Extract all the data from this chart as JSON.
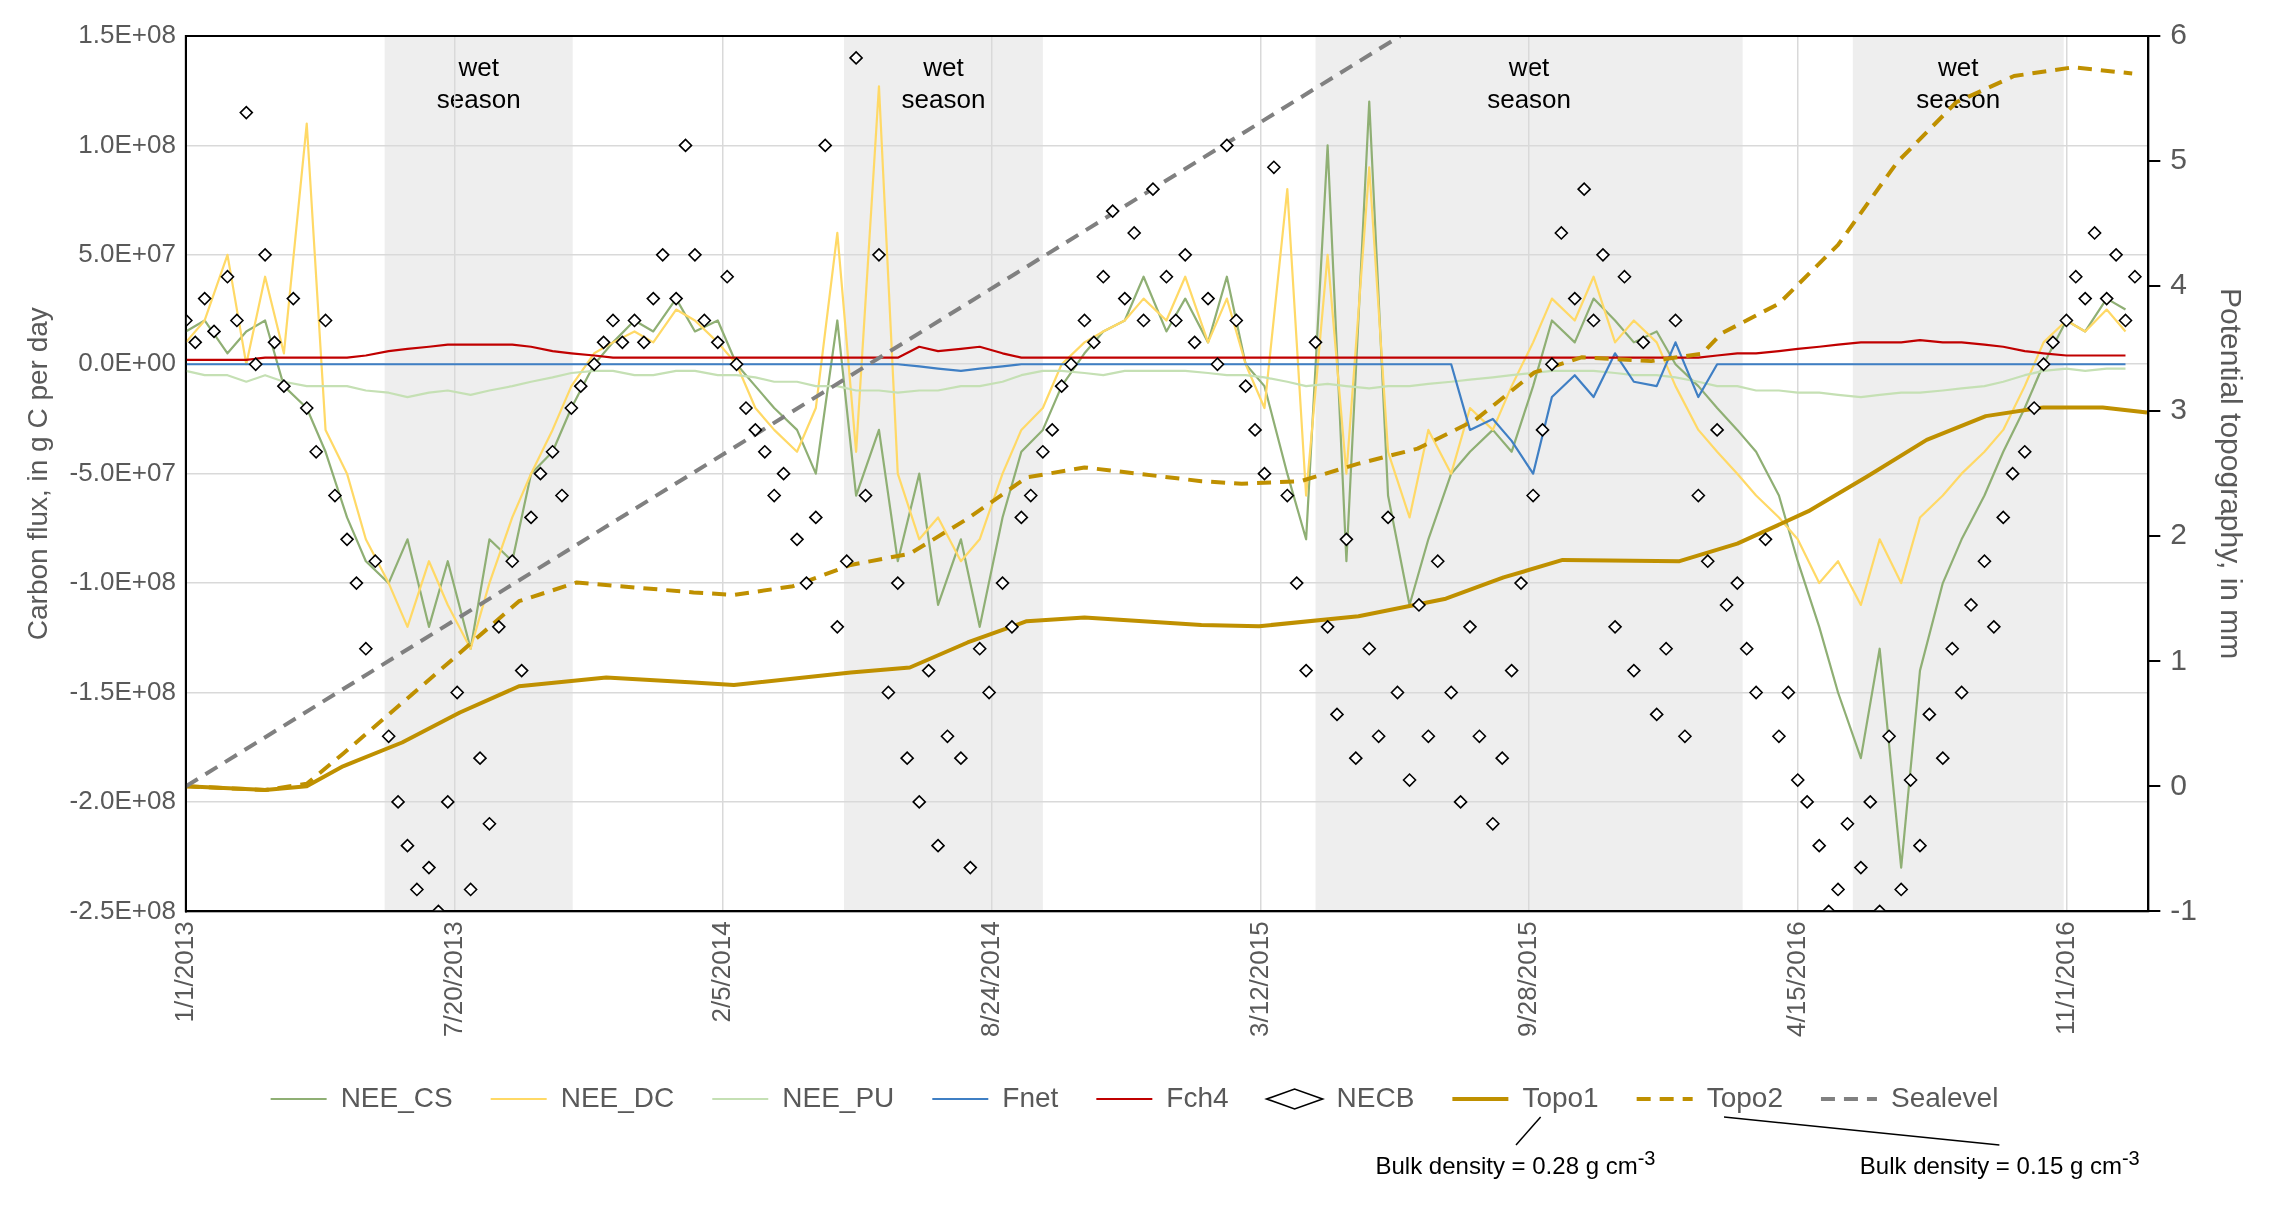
{
  "chart_data": {
    "type": "line",
    "ylabel": "Carbon flux, in g C per day",
    "y2label": "Potential topography, in mm",
    "xlim": [
      "2013-01-01",
      "2017-01-01"
    ],
    "xticks": [
      {
        "value": "2013-01-01",
        "label": "1/1/2013"
      },
      {
        "value": "2013-07-20",
        "label": "7/20/2013"
      },
      {
        "value": "2014-02-05",
        "label": "2/5/2014"
      },
      {
        "value": "2014-08-24",
        "label": "8/24/2014"
      },
      {
        "value": "2015-03-12",
        "label": "3/12/2015"
      },
      {
        "value": "2015-09-28",
        "label": "9/28/2015"
      },
      {
        "value": "2016-04-15",
        "label": "4/15/2016"
      },
      {
        "value": "2016-11-01",
        "label": "11/1/2016"
      }
    ],
    "ylim": [
      -250000000,
      150000000
    ],
    "yticks": [
      {
        "value": -250000000,
        "label": "-2.5E+08"
      },
      {
        "value": -200000000,
        "label": "-2.0E+08"
      },
      {
        "value": -150000000,
        "label": "-1.5E+08"
      },
      {
        "value": -100000000,
        "label": "-1.0E+08"
      },
      {
        "value": -50000000,
        "label": "-5.0E+07"
      },
      {
        "value": 0,
        "label": "0.0E+00"
      },
      {
        "value": 50000000,
        "label": "5.0E+07"
      },
      {
        "value": 100000000,
        "label": "1.0E+08"
      },
      {
        "value": 150000000,
        "label": "1.5E+08"
      }
    ],
    "y2lim": [
      -1,
      6
    ],
    "y2ticks": [
      -1,
      0,
      1,
      2,
      3,
      4,
      5,
      6
    ],
    "grid": true,
    "legend": "bottom",
    "bands": [
      {
        "axis": "x",
        "from": "2013-05-29",
        "to": "2013-10-16",
        "label": "wet season",
        "color": "#eeeeee"
      },
      {
        "axis": "x",
        "from": "2014-05-06",
        "to": "2014-10-01",
        "label": "wet season",
        "color": "#eeeeee"
      },
      {
        "axis": "x",
        "from": "2015-04-22",
        "to": "2016-03-05",
        "label": "wet season",
        "color": "#eeeeee"
      },
      {
        "axis": "x",
        "from": "2016-05-26",
        "to": "2016-10-30",
        "label": "wet season",
        "color": "#eeeeee"
      }
    ],
    "annotations": [
      "Bulk density = 0.28 g cm$^{-3}$",
      "Bulk density = 0.15 g cm$^{-3}$"
    ],
    "x": [
      "2013-01-01",
      "2013-01-15",
      "2013-02-01",
      "2013-02-15",
      "2013-03-01",
      "2013-03-15",
      "2013-04-01",
      "2013-04-15",
      "2013-05-01",
      "2013-05-15",
      "2013-06-01",
      "2013-06-15",
      "2013-07-01",
      "2013-07-15",
      "2013-08-01",
      "2013-08-15",
      "2013-09-01",
      "2013-09-15",
      "2013-10-01",
      "2013-10-15",
      "2013-11-01",
      "2013-11-15",
      "2013-12-01",
      "2013-12-15",
      "2014-01-01",
      "2014-01-15",
      "2014-02-01",
      "2014-02-15",
      "2014-03-01",
      "2014-03-15",
      "2014-04-01",
      "2014-04-15",
      "2014-05-01",
      "2014-05-15",
      "2014-06-01",
      "2014-06-15",
      "2014-07-01",
      "2014-07-15",
      "2014-08-01",
      "2014-08-15",
      "2014-09-01",
      "2014-09-15",
      "2014-10-01",
      "2014-10-15",
      "2014-11-01",
      "2014-11-15",
      "2014-12-01",
      "2014-12-15",
      "2015-01-01",
      "2015-01-15",
      "2015-02-01",
      "2015-02-15",
      "2015-03-01",
      "2015-03-15",
      "2015-04-01",
      "2015-04-15",
      "2015-05-01",
      "2015-05-15",
      "2015-06-01",
      "2015-06-15",
      "2015-07-01",
      "2015-07-15",
      "2015-08-01",
      "2015-08-15",
      "2015-09-01",
      "2015-09-15",
      "2015-10-01",
      "2015-10-15",
      "2015-11-01",
      "2015-11-15",
      "2015-12-01",
      "2015-12-15",
      "2016-01-01",
      "2016-01-15",
      "2016-02-01",
      "2016-02-15",
      "2016-03-01",
      "2016-03-15",
      "2016-04-01",
      "2016-04-15",
      "2016-05-01",
      "2016-05-15",
      "2016-06-01",
      "2016-06-15",
      "2016-07-01",
      "2016-07-15",
      "2016-08-01",
      "2016-08-15",
      "2016-09-01",
      "2016-09-15",
      "2016-10-01",
      "2016-10-15",
      "2016-11-01",
      "2016-11-15",
      "2016-12-01",
      "2016-12-15"
    ],
    "series": [
      {
        "name": "NEE_CS",
        "color": "#8faf74",
        "values": [
          15000000.0,
          20000000.0,
          5000000.0,
          15000000.0,
          20000000.0,
          -10000000.0,
          -20000000.0,
          -40000000.0,
          -70000000.0,
          -90000000.0,
          -100000000.0,
          -80000000.0,
          -120000000.0,
          -90000000.0,
          -130000000.0,
          -80000000.0,
          -90000000.0,
          -50000000.0,
          -40000000.0,
          -20000000.0,
          0,
          10000000.0,
          20000000.0,
          15000000.0,
          30000000.0,
          15000000.0,
          20000000.0,
          0,
          -10000000.0,
          -20000000.0,
          -30000000.0,
          -50000000.0,
          20000000.0,
          -60000000.0,
          -30000000.0,
          -90000000.0,
          -50000000.0,
          -110000000.0,
          -80000000.0,
          -120000000.0,
          -70000000.0,
          -40000000.0,
          -30000000.0,
          -10000000.0,
          5000000.0,
          15000000.0,
          20000000.0,
          40000000.0,
          15000000.0,
          30000000.0,
          10000000.0,
          40000000.0,
          0,
          -10000000.0,
          -50000000.0,
          -80000000.0,
          100000000.0,
          -90000000.0,
          120000000.0,
          -60000000.0,
          -110000000.0,
          -80000000.0,
          -50000000.0,
          -40000000.0,
          -30000000.0,
          -40000000.0,
          -10000000.0,
          20000000.0,
          10000000.0,
          30000000.0,
          20000000.0,
          10000000.0,
          15000000.0,
          0,
          -10000000.0,
          -20000000.0,
          -30000000.0,
          -40000000.0,
          -60000000.0,
          -90000000.0,
          -120000000.0,
          -150000000.0,
          -180000000.0,
          -130000000.0,
          -230000000.0,
          -140000000.0,
          -100000000.0,
          -80000000.0,
          -60000000.0,
          -40000000.0,
          -20000000.0,
          0,
          20000000.0,
          15000000.0,
          30000000.0,
          25000000.0
        ]
      },
      {
        "name": "NEE_DC",
        "color": "#ffd966",
        "values": [
          10000000.0,
          20000000.0,
          50000000.0,
          0,
          40000000.0,
          5000000.0,
          110000000.0,
          -30000000.0,
          -50000000.0,
          -80000000.0,
          -100000000.0,
          -120000000.0,
          -90000000.0,
          -110000000.0,
          -130000000.0,
          -100000000.0,
          -70000000.0,
          -50000000.0,
          -30000000.0,
          -10000000.0,
          5000000.0,
          10000000.0,
          15000000.0,
          10000000.0,
          25000000.0,
          20000000.0,
          10000000.0,
          0,
          -20000000.0,
          -30000000.0,
          -40000000.0,
          -20000000.0,
          60000000.0,
          -40000000.0,
          127000000.0,
          -50000000.0,
          -80000000.0,
          -70000000.0,
          -90000000.0,
          -80000000.0,
          -50000000.0,
          -30000000.0,
          -20000000.0,
          0,
          10000000.0,
          15000000.0,
          20000000.0,
          30000000.0,
          20000000.0,
          40000000.0,
          10000000.0,
          30000000.0,
          0,
          -20000000.0,
          80000000.0,
          -60000000.0,
          50000000.0,
          -50000000.0,
          90000000.0,
          -40000000.0,
          -70000000.0,
          -30000000.0,
          -50000000.0,
          -20000000.0,
          -30000000.0,
          -10000000.0,
          10000000.0,
          30000000.0,
          20000000.0,
          40000000.0,
          10000000.0,
          20000000.0,
          10000000.0,
          -10000000.0,
          -30000000.0,
          -40000000.0,
          -50000000.0,
          -60000000.0,
          -70000000.0,
          -80000000.0,
          -100000000.0,
          -90000000.0,
          -110000000.0,
          -80000000.0,
          -100000000.0,
          -70000000.0,
          -60000000.0,
          -50000000.0,
          -40000000.0,
          -30000000.0,
          -10000000.0,
          10000000.0,
          20000000.0,
          15000000.0,
          25000000.0,
          15000000.0
        ]
      },
      {
        "name": "NEE_PU",
        "color": "#c5e0b4",
        "values": [
          -3000000.0,
          -5000000.0,
          -5000000.0,
          -8000000.0,
          -5000000.0,
          -8000000.0,
          -10000000.0,
          -10000000.0,
          -10000000.0,
          -12000000.0,
          -13000000.0,
          -15000000.0,
          -13000000.0,
          -12000000.0,
          -14000000.0,
          -12000000.0,
          -10000000.0,
          -8000000.0,
          -6000000.0,
          -4000000.0,
          -3000000.0,
          -3000000.0,
          -5000000.0,
          -5000000.0,
          -3000000.0,
          -3000000.0,
          -5000000.0,
          -5000000.0,
          -6000000.0,
          -8000000.0,
          -8000000.0,
          -10000000.0,
          -10000000.0,
          -12000000.0,
          -12000000.0,
          -13000000.0,
          -12000000.0,
          -12000000.0,
          -10000000.0,
          -10000000.0,
          -8000000.0,
          -5000000.0,
          -3000000.0,
          -3000000.0,
          -4000000.0,
          -5000000.0,
          -3000000.0,
          -3000000.0,
          -3000000.0,
          -3000000.0,
          -4000000.0,
          -5000000.0,
          -5000000.0,
          -6000000.0,
          -8000000.0,
          -10000000.0,
          -9000000.0,
          -10000000.0,
          -11000000.0,
          -10000000.0,
          -10000000.0,
          -9000000.0,
          -8000000.0,
          -7000000.0,
          -6000000.0,
          -5000000.0,
          -4000000.0,
          -3000000.0,
          -3000000.0,
          -3000000.0,
          -4000000.0,
          -5000000.0,
          -5000000.0,
          -6000000.0,
          -8000000.0,
          -10000000.0,
          -10000000.0,
          -12000000.0,
          -12000000.0,
          -13000000.0,
          -13000000.0,
          -14000000.0,
          -15000000.0,
          -14000000.0,
          -13000000.0,
          -13000000.0,
          -12000000.0,
          -11000000.0,
          -10000000.0,
          -8000000.0,
          -5000000.0,
          -3000000.0,
          -2000000.0,
          -3000000.0,
          -2000000.0,
          -2000000.0
        ]
      },
      {
        "name": "Fnet",
        "color": "#3f7fc4",
        "values": [
          0,
          0,
          0,
          0,
          0,
          0,
          0,
          0,
          0,
          0,
          0,
          0,
          0,
          0,
          0,
          0,
          0,
          0,
          0,
          0,
          0,
          0,
          0,
          0,
          0,
          0,
          0,
          0,
          0,
          0,
          0,
          0,
          0,
          0,
          0,
          0,
          -1000000.0,
          -2000000.0,
          -3000000.0,
          -2000000.0,
          -1000000.0,
          0,
          0,
          0,
          0,
          0,
          0,
          0,
          0,
          0,
          0,
          0,
          0,
          0,
          0,
          0,
          0,
          0,
          0,
          0,
          0,
          0,
          0,
          -30000000.0,
          -25000000.0,
          -35000000.0,
          -50000000.0,
          -15000000.0,
          -5000000.0,
          -15000000.0,
          5000000.0,
          -8000000.0,
          -10000000.0,
          10000000.0,
          -15000000.0,
          0,
          0,
          0,
          0,
          0,
          0,
          0,
          0,
          0,
          0,
          0,
          0,
          0,
          0,
          0,
          0,
          0,
          0,
          0,
          0,
          0
        ]
      },
      {
        "name": "Fch4",
        "color": "#c00000",
        "values": [
          2000000.0,
          2000000.0,
          2000000.0,
          2000000.0,
          3000000.0,
          3000000.0,
          3000000.0,
          3000000.0,
          3000000.0,
          4000000.0,
          6000000.0,
          7000000.0,
          8000000.0,
          9000000.0,
          9000000.0,
          9000000.0,
          9000000.0,
          8000000.0,
          6000000.0,
          5000000.0,
          4000000.0,
          3000000.0,
          3000000.0,
          3000000.0,
          3000000.0,
          3000000.0,
          3000000.0,
          3000000.0,
          3000000.0,
          3000000.0,
          3000000.0,
          3000000.0,
          3000000.0,
          3000000.0,
          3000000.0,
          3000000.0,
          8000000.0,
          6000000.0,
          7000000.0,
          8000000.0,
          5000000.0,
          3000000.0,
          3000000.0,
          3000000.0,
          3000000.0,
          3000000.0,
          3000000.0,
          3000000.0,
          3000000.0,
          3000000.0,
          3000000.0,
          3000000.0,
          3000000.0,
          3000000.0,
          3000000.0,
          3000000.0,
          3000000.0,
          3000000.0,
          3000000.0,
          3000000.0,
          3000000.0,
          3000000.0,
          3000000.0,
          3000000.0,
          3000000.0,
          3000000.0,
          3000000.0,
          3000000.0,
          3000000.0,
          3000000.0,
          3000000.0,
          3000000.0,
          3000000.0,
          3000000.0,
          3000000.0,
          4000000.0,
          5000000.0,
          5000000.0,
          6000000.0,
          7000000.0,
          8000000.0,
          9000000.0,
          10000000.0,
          10000000.0,
          10000000.0,
          11000000.0,
          10000000.0,
          10000000.0,
          9000000.0,
          8000000.0,
          6000000.0,
          5000000.0,
          4000000.0,
          4000000.0,
          4000000.0,
          4000000.0
        ]
      },
      {
        "name": "NECB",
        "type": "scatter",
        "marker": "diamond",
        "color": "#000000",
        "x": [
          "2013-01-01",
          "2013-01-08",
          "2013-01-15",
          "2013-01-22",
          "2013-02-01",
          "2013-02-08",
          "2013-02-15",
          "2013-02-22",
          "2013-03-01",
          "2013-03-08",
          "2013-03-15",
          "2013-03-22",
          "2013-04-01",
          "2013-04-08",
          "2013-04-15",
          "2013-04-22",
          "2013-05-01",
          "2013-05-08",
          "2013-05-15",
          "2013-05-22",
          "2013-06-01",
          "2013-06-08",
          "2013-06-15",
          "2013-06-22",
          "2013-07-01",
          "2013-07-08",
          "2013-07-15",
          "2013-07-22",
          "2013-08-01",
          "2013-08-08",
          "2013-08-15",
          "2013-08-22",
          "2013-09-01",
          "2013-09-08",
          "2013-09-15",
          "2013-09-22",
          "2013-10-01",
          "2013-10-08",
          "2013-10-15",
          "2013-10-22",
          "2013-11-01",
          "2013-11-08",
          "2013-11-15",
          "2013-11-22",
          "2013-12-01",
          "2013-12-08",
          "2013-12-15",
          "2013-12-22",
          "2014-01-01",
          "2014-01-08",
          "2014-01-15",
          "2014-01-22",
          "2014-02-01",
          "2014-02-08",
          "2014-02-15",
          "2014-02-22",
          "2014-03-01",
          "2014-03-08",
          "2014-03-15",
          "2014-03-22",
          "2014-04-01",
          "2014-04-08",
          "2014-04-15",
          "2014-04-22",
          "2014-05-01",
          "2014-05-08",
          "2014-05-15",
          "2014-05-22",
          "2014-06-01",
          "2014-06-08",
          "2014-06-15",
          "2014-06-22",
          "2014-07-01",
          "2014-07-08",
          "2014-07-15",
          "2014-07-22",
          "2014-08-01",
          "2014-08-08",
          "2014-08-15",
          "2014-08-22",
          "2014-09-01",
          "2014-09-08",
          "2014-09-15",
          "2014-09-22",
          "2014-10-01",
          "2014-10-08",
          "2014-10-15",
          "2014-10-22",
          "2014-11-01",
          "2014-11-08",
          "2014-11-15",
          "2014-11-22",
          "2014-12-01",
          "2014-12-08",
          "2014-12-15",
          "2014-12-22",
          "2015-01-01",
          "2015-01-08",
          "2015-01-15",
          "2015-01-22",
          "2015-02-01",
          "2015-02-08",
          "2015-02-15",
          "2015-02-22",
          "2015-03-01",
          "2015-03-08",
          "2015-03-15",
          "2015-03-22",
          "2015-04-01",
          "2015-04-08",
          "2015-04-15",
          "2015-04-22",
          "2015-05-01",
          "2015-05-08",
          "2015-05-15",
          "2015-05-22",
          "2015-06-01",
          "2015-06-08",
          "2015-06-15",
          "2015-06-22",
          "2015-07-01",
          "2015-07-08",
          "2015-07-15",
          "2015-07-22",
          "2015-08-01",
          "2015-08-08",
          "2015-08-15",
          "2015-08-22",
          "2015-09-01",
          "2015-09-08",
          "2015-09-15",
          "2015-09-22",
          "2015-10-01",
          "2015-10-08",
          "2015-10-15",
          "2015-10-22",
          "2015-11-01",
          "2015-11-08",
          "2015-11-15",
          "2015-11-22",
          "2015-12-01",
          "2015-12-08",
          "2015-12-15",
          "2015-12-22",
          "2016-01-01",
          "2016-01-08",
          "2016-01-15",
          "2016-01-22",
          "2016-02-01",
          "2016-02-08",
          "2016-02-15",
          "2016-02-22",
          "2016-03-01",
          "2016-03-08",
          "2016-03-15",
          "2016-03-22",
          "2016-04-01",
          "2016-04-08",
          "2016-04-15",
          "2016-04-22",
          "2016-05-01",
          "2016-05-08",
          "2016-05-15",
          "2016-05-22",
          "2016-06-01",
          "2016-06-08",
          "2016-06-15",
          "2016-06-22",
          "2016-07-01",
          "2016-07-08",
          "2016-07-15",
          "2016-07-22",
          "2016-08-01",
          "2016-08-08",
          "2016-08-15",
          "2016-08-22",
          "2016-09-01",
          "2016-09-08",
          "2016-09-15",
          "2016-09-22",
          "2016-10-01",
          "2016-10-08",
          "2016-10-15",
          "2016-10-22",
          "2016-11-01",
          "2016-11-08",
          "2016-11-15",
          "2016-11-22",
          "2016-12-01",
          "2016-12-08",
          "2016-12-15",
          "2016-12-22"
        ],
        "values": [
          20000000.0,
          10000000.0,
          30000000.0,
          15000000.0,
          40000000.0,
          20000000.0,
          115000000.0,
          0,
          50000000.0,
          10000000.0,
          -10000000.0,
          30000000.0,
          -20000000.0,
          -40000000.0,
          20000000.0,
          -60000000.0,
          -80000000.0,
          -100000000.0,
          -130000000.0,
          -90000000.0,
          -170000000.0,
          -200000000.0,
          -220000000.0,
          -240000000.0,
          -230000000.0,
          -250000000.0,
          -200000000.0,
          -150000000.0,
          -240000000.0,
          -180000000.0,
          -210000000.0,
          -120000000.0,
          -90000000.0,
          -140000000.0,
          -70000000.0,
          -50000000.0,
          -40000000.0,
          -60000000.0,
          -20000000.0,
          -10000000.0,
          0,
          10000000.0,
          20000000.0,
          10000000.0,
          20000000.0,
          10000000.0,
          30000000.0,
          50000000.0,
          30000000.0,
          100000000.0,
          50000000.0,
          20000000.0,
          10000000.0,
          40000000.0,
          0,
          -20000000.0,
          -30000000.0,
          -40000000.0,
          -60000000.0,
          -50000000.0,
          -80000000.0,
          -100000000.0,
          -70000000.0,
          100000000.0,
          -120000000.0,
          -90000000.0,
          140000000.0,
          -60000000.0,
          50000000.0,
          -150000000.0,
          -100000000.0,
          -180000000.0,
          -200000000.0,
          -140000000.0,
          -220000000.0,
          -170000000.0,
          -180000000.0,
          -230000000.0,
          -130000000.0,
          -150000000.0,
          -100000000.0,
          -120000000.0,
          -70000000.0,
          -60000000.0,
          -40000000.0,
          -30000000.0,
          -10000000.0,
          0,
          20000000.0,
          10000000.0,
          40000000.0,
          70000000.0,
          30000000.0,
          60000000.0,
          20000000.0,
          80000000.0,
          40000000.0,
          20000000.0,
          50000000.0,
          10000000.0,
          30000000.0,
          0,
          100000000.0,
          20000000.0,
          -10000000.0,
          -30000000.0,
          -50000000.0,
          90000000.0,
          -60000000.0,
          -100000000.0,
          -140000000.0,
          10000000.0,
          -120000000.0,
          -160000000.0,
          -80000000.0,
          -180000000.0,
          -130000000.0,
          -170000000.0,
          -70000000.0,
          -150000000.0,
          -190000000.0,
          -110000000.0,
          -170000000.0,
          -90000000.0,
          -150000000.0,
          -200000000.0,
          -120000000.0,
          -170000000.0,
          -210000000.0,
          -180000000.0,
          -140000000.0,
          -100000000.0,
          -60000000.0,
          -30000000.0,
          0,
          60000000.0,
          30000000.0,
          80000000.0,
          20000000.0,
          50000000.0,
          -120000000.0,
          40000000.0,
          -140000000.0,
          10000000.0,
          -160000000.0,
          -130000000.0,
          20000000.0,
          -170000000.0,
          -60000000.0,
          -90000000.0,
          -30000000.0,
          -110000000.0,
          -100000000.0,
          -130000000.0,
          -150000000.0,
          -80000000.0,
          -170000000.0,
          -150000000.0,
          -190000000.0,
          -200000000.0,
          -220000000.0,
          -250000000.0,
          -240000000.0,
          -210000000.0,
          -230000000.0,
          -200000000.0,
          -250000000.0,
          -170000000.0,
          -240000000.0,
          -190000000.0,
          -220000000.0,
          -160000000.0,
          -180000000.0,
          -130000000.0,
          -150000000.0,
          -110000000.0,
          -90000000.0,
          -120000000.0,
          -70000000.0,
          -50000000.0,
          -40000000.0,
          -20000000.0,
          0,
          10000000.0,
          20000000.0,
          40000000.0,
          30000000.0,
          60000000.0,
          30000000.0,
          50000000.0,
          20000000.0,
          40000000.0
        ]
      },
      {
        "name": "Topo1",
        "axis": "y2",
        "color": "#bf9000",
        "x": [
          "2013-01-01",
          "2013-03-01",
          "2013-04-01",
          "2013-04-28",
          "2013-06-11",
          "2013-07-24",
          "2013-09-06",
          "2013-11-10",
          "2014-01-14",
          "2014-02-13",
          "2014-05-11",
          "2014-06-24",
          "2014-08-06",
          "2014-09-19",
          "2014-11-01",
          "2015-01-27",
          "2015-03-11",
          "2015-05-24",
          "2015-07-28",
          "2015-09-09",
          "2015-10-23",
          "2016-01-18",
          "2016-03-01",
          "2016-04-23",
          "2016-06-06",
          "2016-07-20",
          "2016-09-02",
          "2016-10-15",
          "2016-11-28",
          "2016-12-31"
        ],
        "values": [
          0,
          -0.03,
          0,
          0.16,
          0.35,
          0.59,
          0.8,
          0.87,
          0.83,
          0.81,
          0.91,
          0.95,
          1.15,
          1.32,
          1.35,
          1.29,
          1.28,
          1.36,
          1.5,
          1.67,
          1.81,
          1.8,
          1.94,
          2.2,
          2.48,
          2.77,
          2.96,
          3.03,
          3.03,
          2.99
        ]
      },
      {
        "name": "Topo2",
        "axis": "y2",
        "color": "#bf9000",
        "line_style": "dashed",
        "x": [
          "2013-01-01",
          "2013-03-01",
          "2013-04-01",
          "2013-04-28",
          "2013-07-03",
          "2013-09-06",
          "2013-10-19",
          "2014-01-14",
          "2014-02-13",
          "2014-03-29",
          "2014-05-11",
          "2014-06-24",
          "2014-08-06",
          "2014-09-19",
          "2014-11-01",
          "2015-01-27",
          "2015-02-26",
          "2015-04-11",
          "2015-05-24",
          "2015-07-07",
          "2015-08-19",
          "2015-10-02",
          "2015-11-06",
          "2015-12-28",
          "2016-02-04",
          "2016-02-18",
          "2016-04-01",
          "2016-05-15",
          "2016-06-28",
          "2016-08-11",
          "2016-09-23",
          "2016-11-06",
          "2016-12-20"
        ],
        "values": [
          0,
          -0.03,
          0.02,
          0.26,
          0.87,
          1.48,
          1.63,
          1.55,
          1.53,
          1.6,
          1.77,
          1.86,
          2.14,
          2.47,
          2.55,
          2.44,
          2.42,
          2.44,
          2.58,
          2.7,
          2.93,
          3.31,
          3.43,
          3.4,
          3.46,
          3.62,
          3.86,
          4.33,
          4.99,
          5.47,
          5.68,
          5.75,
          5.7
        ]
      },
      {
        "name": "Sealevel",
        "axis": "y2",
        "color": "#808080",
        "line_style": "dashed",
        "x": [
          "2013-01-01",
          "2015-06-24"
        ],
        "values": [
          0,
          6
        ]
      }
    ]
  }
}
